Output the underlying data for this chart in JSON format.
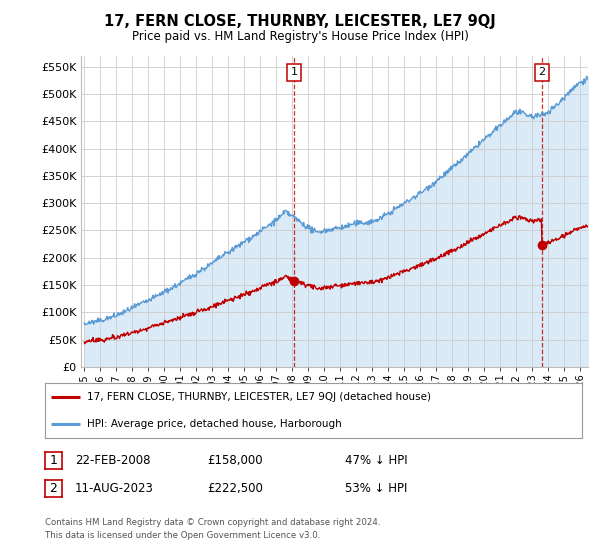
{
  "title": "17, FERN CLOSE, THURNBY, LEICESTER, LE7 9QJ",
  "subtitle": "Price paid vs. HM Land Registry's House Price Index (HPI)",
  "ylim": [
    0,
    570000
  ],
  "xlim_start": 1994.8,
  "xlim_end": 2026.5,
  "hpi_color": "#5b9bd5",
  "hpi_fill_color": "#daeaf7",
  "price_color": "#c00000",
  "dashed_color": "#c00000",
  "marker1_year": 2008.13,
  "marker1_price": 158000,
  "marker2_year": 2023.62,
  "marker2_price": 222500,
  "legend_property": "17, FERN CLOSE, THURNBY, LEICESTER, LE7 9QJ (detached house)",
  "legend_hpi": "HPI: Average price, detached house, Harborough",
  "table_row1_num": "1",
  "table_row1_date": "22-FEB-2008",
  "table_row1_price": "£158,000",
  "table_row1_hpi": "47% ↓ HPI",
  "table_row2_num": "2",
  "table_row2_date": "11-AUG-2023",
  "table_row2_price": "£222,500",
  "table_row2_hpi": "53% ↓ HPI",
  "footer_line1": "Contains HM Land Registry data © Crown copyright and database right 2024.",
  "footer_line2": "This data is licensed under the Open Government Licence v3.0.",
  "bg_color": "#ffffff",
  "grid_color": "#cccccc"
}
